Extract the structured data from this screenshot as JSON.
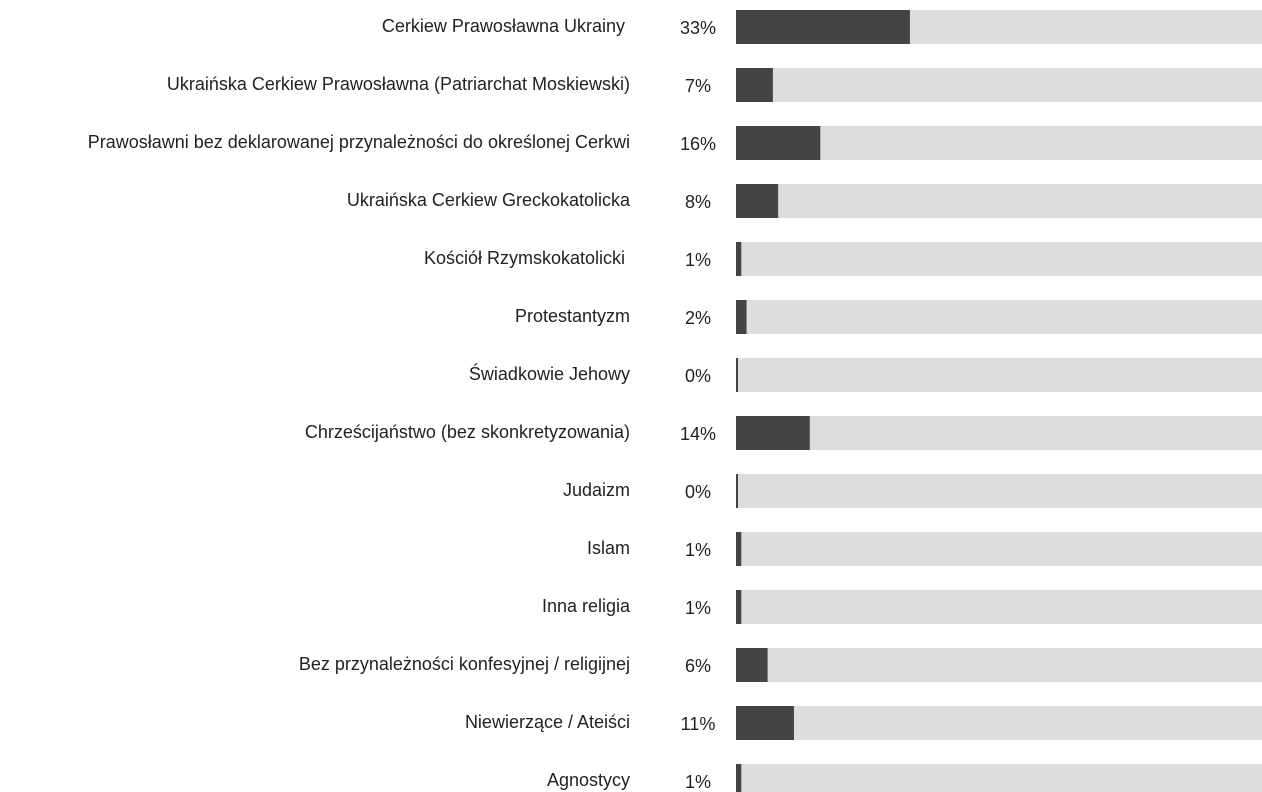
{
  "chart_data": {
    "type": "bar",
    "categories": [
      "Cerkiew Prawosławna Ukrainy ",
      "Ukraińska Cerkiew Prawosławna (Patriarchat Moskiewski)",
      "Prawosławni bez deklarowanej przynależności do określonej Cerkwi",
      "Ukraińska Cerkiew Greckokatolicka",
      "Kościół Rzymskokatolicki ",
      "Protestantyzm",
      "Świadkowie Jehowy",
      "Chrześcijaństwo (bez skonkretyzowania)",
      "Judaizm",
      "Islam",
      "Inna religia",
      "Bez przynależności konfesyjnej / religijnej",
      "Niewierzące / Ateiści",
      "Agnostycy"
    ],
    "values": [
      33,
      7,
      16,
      8,
      1,
      2,
      0,
      14,
      0,
      1,
      1,
      6,
      11,
      1
    ],
    "value_labels": [
      "33%",
      "7%",
      "16%",
      "8%",
      "1%",
      "2%",
      "0%",
      "14%",
      "0%",
      "1%",
      "1%",
      "6%",
      "11%",
      "1%"
    ],
    "color": "#444444",
    "track_color": "#dddddd",
    "xlim": [
      0,
      100
    ]
  }
}
